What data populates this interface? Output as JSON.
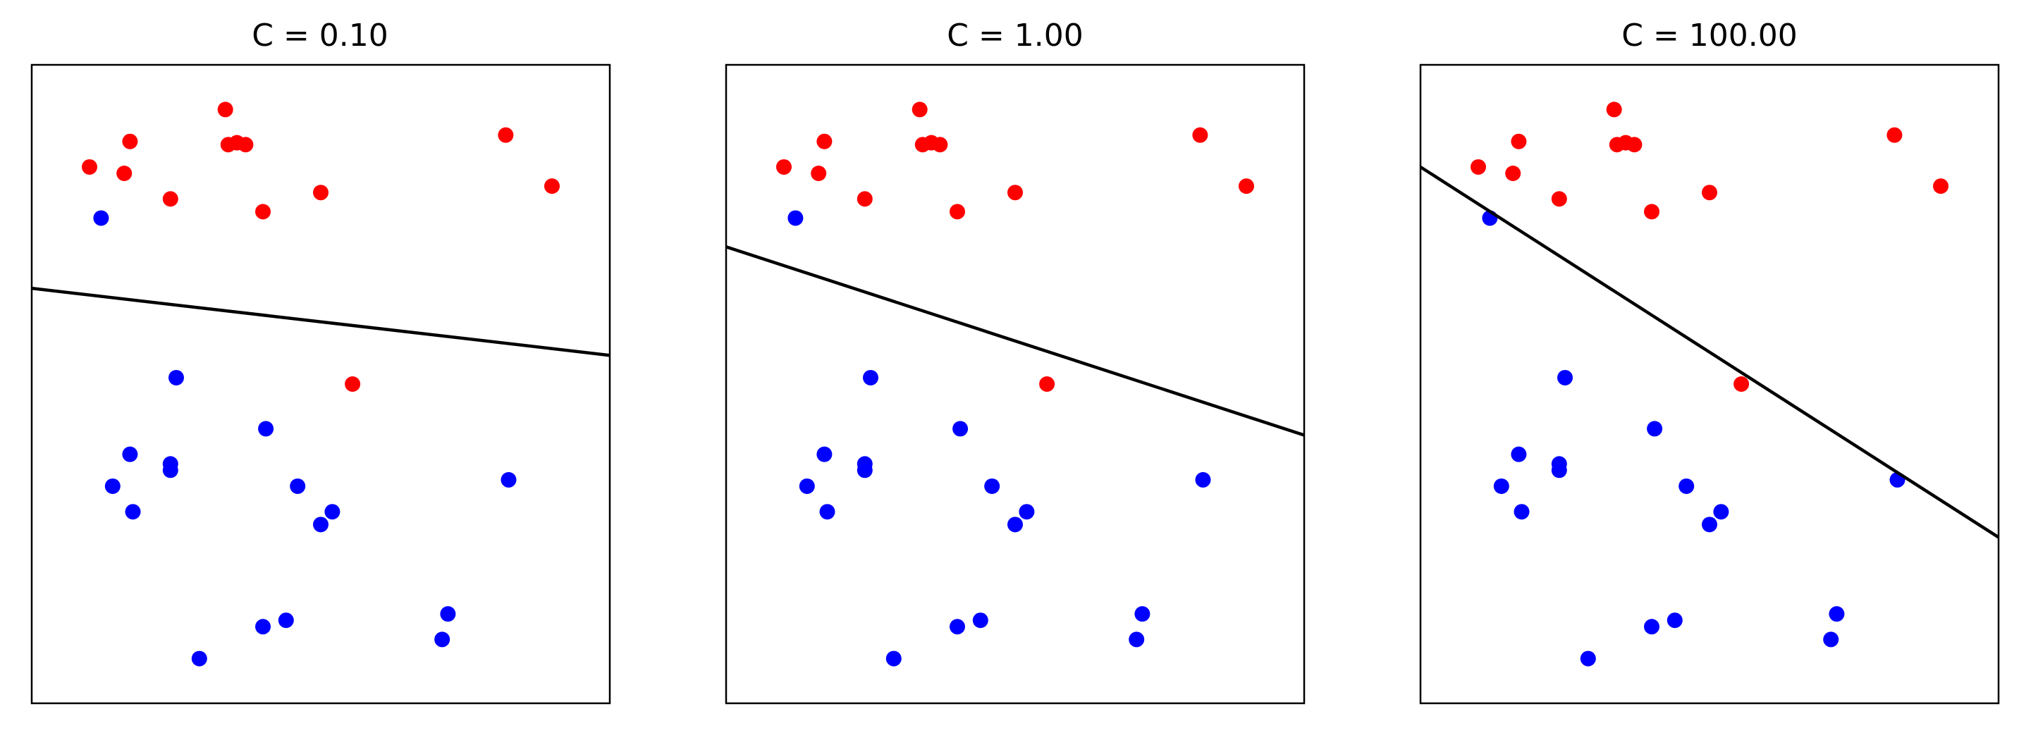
{
  "figure": {
    "background": "#ffffff",
    "colors": {
      "class_red": "#ff0000",
      "class_blue": "#0000ff",
      "boundary": "#000000",
      "frame": "#000000"
    }
  },
  "chart_data": [
    {
      "type": "scatter",
      "title": "C = 0.10",
      "xlim": [
        0,
        1
      ],
      "ylim": [
        0,
        1
      ],
      "grid": false,
      "ticks": false,
      "series": [
        {
          "color": "#ff0000",
          "points": [
            [
              0.1,
              0.84
            ],
            [
              0.17,
              0.88
            ],
            [
              0.16,
              0.83
            ],
            [
              0.24,
              0.79
            ],
            [
              0.335,
              0.93
            ],
            [
              0.34,
              0.875
            ],
            [
              0.355,
              0.878
            ],
            [
              0.37,
              0.875
            ],
            [
              0.4,
              0.77
            ],
            [
              0.5,
              0.8
            ],
            [
              0.82,
              0.89
            ],
            [
              0.9,
              0.81
            ],
            [
              0.555,
              0.5
            ]
          ]
        },
        {
          "color": "#0000ff",
          "points": [
            [
              0.12,
              0.76
            ],
            [
              0.25,
              0.51
            ],
            [
              0.17,
              0.39
            ],
            [
              0.14,
              0.34
            ],
            [
              0.175,
              0.3
            ],
            [
              0.24,
              0.375
            ],
            [
              0.24,
              0.365
            ],
            [
              0.405,
              0.43
            ],
            [
              0.46,
              0.34
            ],
            [
              0.52,
              0.3
            ],
            [
              0.5,
              0.28
            ],
            [
              0.825,
              0.35
            ],
            [
              0.72,
              0.14
            ],
            [
              0.71,
              0.1
            ],
            [
              0.44,
              0.13
            ],
            [
              0.4,
              0.12
            ],
            [
              0.29,
              0.07
            ]
          ]
        }
      ],
      "boundary": [
        [
          0.0,
          0.65
        ],
        [
          1.0,
          0.545
        ]
      ]
    },
    {
      "type": "scatter",
      "title": "C = 1.00",
      "xlim": [
        0,
        1
      ],
      "ylim": [
        0,
        1
      ],
      "grid": false,
      "ticks": false,
      "series": [
        {
          "color": "#ff0000",
          "points": [
            [
              0.1,
              0.84
            ],
            [
              0.17,
              0.88
            ],
            [
              0.16,
              0.83
            ],
            [
              0.24,
              0.79
            ],
            [
              0.335,
              0.93
            ],
            [
              0.34,
              0.875
            ],
            [
              0.355,
              0.878
            ],
            [
              0.37,
              0.875
            ],
            [
              0.4,
              0.77
            ],
            [
              0.5,
              0.8
            ],
            [
              0.82,
              0.89
            ],
            [
              0.9,
              0.81
            ],
            [
              0.555,
              0.5
            ]
          ]
        },
        {
          "color": "#0000ff",
          "points": [
            [
              0.12,
              0.76
            ],
            [
              0.25,
              0.51
            ],
            [
              0.17,
              0.39
            ],
            [
              0.14,
              0.34
            ],
            [
              0.175,
              0.3
            ],
            [
              0.24,
              0.375
            ],
            [
              0.24,
              0.365
            ],
            [
              0.405,
              0.43
            ],
            [
              0.46,
              0.34
            ],
            [
              0.52,
              0.3
            ],
            [
              0.5,
              0.28
            ],
            [
              0.825,
              0.35
            ],
            [
              0.72,
              0.14
            ],
            [
              0.71,
              0.1
            ],
            [
              0.44,
              0.13
            ],
            [
              0.4,
              0.12
            ],
            [
              0.29,
              0.07
            ]
          ]
        }
      ],
      "boundary": [
        [
          0.0,
          0.715
        ],
        [
          1.0,
          0.42
        ]
      ]
    },
    {
      "type": "scatter",
      "title": "C = 100.00",
      "xlim": [
        0,
        1
      ],
      "ylim": [
        0,
        1
      ],
      "grid": false,
      "ticks": false,
      "series": [
        {
          "color": "#ff0000",
          "points": [
            [
              0.1,
              0.84
            ],
            [
              0.17,
              0.88
            ],
            [
              0.16,
              0.83
            ],
            [
              0.24,
              0.79
            ],
            [
              0.335,
              0.93
            ],
            [
              0.34,
              0.875
            ],
            [
              0.355,
              0.878
            ],
            [
              0.37,
              0.875
            ],
            [
              0.4,
              0.77
            ],
            [
              0.5,
              0.8
            ],
            [
              0.82,
              0.89
            ],
            [
              0.9,
              0.81
            ],
            [
              0.555,
              0.5
            ]
          ]
        },
        {
          "color": "#0000ff",
          "points": [
            [
              0.12,
              0.76
            ],
            [
              0.25,
              0.51
            ],
            [
              0.17,
              0.39
            ],
            [
              0.14,
              0.34
            ],
            [
              0.175,
              0.3
            ],
            [
              0.24,
              0.375
            ],
            [
              0.24,
              0.365
            ],
            [
              0.405,
              0.43
            ],
            [
              0.46,
              0.34
            ],
            [
              0.52,
              0.3
            ],
            [
              0.5,
              0.28
            ],
            [
              0.825,
              0.35
            ],
            [
              0.72,
              0.14
            ],
            [
              0.71,
              0.1
            ],
            [
              0.44,
              0.13
            ],
            [
              0.4,
              0.12
            ],
            [
              0.29,
              0.07
            ]
          ]
        }
      ],
      "boundary": [
        [
          0.0,
          0.84
        ],
        [
          1.0,
          0.26
        ]
      ]
    }
  ]
}
